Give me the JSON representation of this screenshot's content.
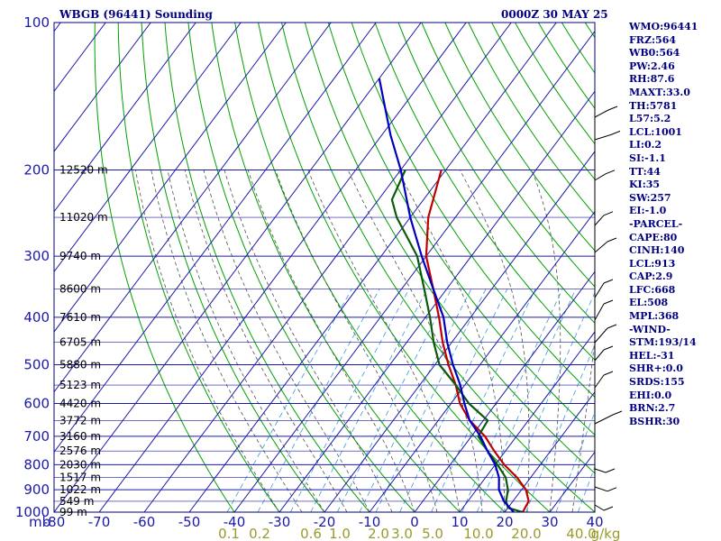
{
  "header": {
    "station": "WBGB (96441) Sounding",
    "datetime": "0000Z 30 MAY 25"
  },
  "chart_data": {
    "type": "line",
    "title": "WBGB (96441) Sounding",
    "yscale": "log",
    "ylim": [
      1000,
      100
    ],
    "xlim": [
      -80,
      40
    ],
    "pressure_ticks": [
      "100",
      "200",
      "300",
      "400",
      "500",
      "600",
      "700",
      "800",
      "900",
      "1000"
    ],
    "temp_ticks": [
      "-80",
      "-70",
      "-60",
      "-50",
      "-40",
      "-30",
      "-20",
      "-10",
      "0",
      "10",
      "20",
      "30",
      "40"
    ],
    "y_unit": "mb",
    "height_labels": [
      {
        "p": 200,
        "label": "12520 m"
      },
      {
        "p": 250,
        "label": "11020 m"
      },
      {
        "p": 300,
        "label": "9740 m"
      },
      {
        "p": 350,
        "label": "8600 m"
      },
      {
        "p": 400,
        "label": "7610 m"
      },
      {
        "p": 450,
        "label": "6705 m"
      },
      {
        "p": 500,
        "label": "5880 m"
      },
      {
        "p": 550,
        "label": "5123 m"
      },
      {
        "p": 600,
        "label": "4420 m"
      },
      {
        "p": 650,
        "label": "3772 m"
      },
      {
        "p": 700,
        "label": "3160 m"
      },
      {
        "p": 750,
        "label": "2576 m"
      },
      {
        "p": 800,
        "label": "2030 m"
      },
      {
        "p": 850,
        "label": "1517 m"
      },
      {
        "p": 900,
        "label": "1022 m"
      },
      {
        "p": 950,
        "label": "549 m"
      },
      {
        "p": 1000,
        "label": "99 m"
      }
    ],
    "mixing_ratio_labels": [
      "0.1",
      "0.2",
      "0.6",
      "1.0",
      "2.0",
      "3.0",
      "5.0",
      "10.0",
      "20.0",
      "40.0"
    ],
    "mixing_ratio_unit": "g/kg",
    "grid": true,
    "series": [
      {
        "color": "#c00000",
        "points": [
          [
            24,
            1000
          ],
          [
            23.5,
            950
          ],
          [
            21,
            900
          ],
          [
            17,
            850
          ],
          [
            12,
            800
          ],
          [
            7.5,
            750
          ],
          [
            3,
            700
          ],
          [
            -3,
            650
          ],
          [
            -8,
            600
          ],
          [
            -12,
            550
          ],
          [
            -17,
            500
          ],
          [
            -22,
            450
          ],
          [
            -27,
            400
          ],
          [
            -33,
            350
          ],
          [
            -40,
            300
          ],
          [
            -46,
            250
          ],
          [
            -51,
            200
          ]
        ]
      },
      {
        "color": "#0a5a0a",
        "points": [
          [
            24,
            1000
          ],
          [
            20,
            980
          ],
          [
            18.5,
            950
          ],
          [
            17,
            900
          ],
          [
            14.5,
            850
          ],
          [
            10.5,
            800
          ],
          [
            6,
            750
          ],
          [
            1.5,
            700
          ],
          [
            1,
            650
          ],
          [
            -6,
            600
          ],
          [
            -12,
            550
          ],
          [
            -19,
            500
          ],
          [
            -24,
            450
          ],
          [
            -29,
            400
          ],
          [
            -35,
            350
          ],
          [
            -42,
            300
          ],
          [
            -53,
            250
          ],
          [
            -57,
            230
          ],
          [
            -59,
            200
          ]
        ]
      },
      {
        "color": "#0000c0",
        "points": [
          [
            22,
            1000
          ],
          [
            18,
            950
          ],
          [
            15,
            900
          ],
          [
            13,
            850
          ],
          [
            10,
            800
          ],
          [
            6,
            750
          ],
          [
            2,
            700
          ],
          [
            -3,
            650
          ],
          [
            -7,
            600
          ],
          [
            -11,
            550
          ],
          [
            -16,
            500
          ],
          [
            -21,
            450
          ],
          [
            -26,
            400
          ],
          [
            -33,
            350
          ],
          [
            -41,
            300
          ],
          [
            -50,
            250
          ],
          [
            -60,
            200
          ],
          [
            -68,
            170
          ],
          [
            -80,
            130
          ]
        ]
      }
    ]
  },
  "indices": [
    "WMO:96441",
    "FRZ:564",
    "WB0:564",
    "PW:2.46",
    "RH:87.6",
    "MAXT:33.0",
    "TH:5781",
    "L57:5.2",
    "LCL:1001",
    "LI:0.2",
    "SI:-1.1",
    "TT:44",
    "KI:35",
    "SW:257",
    "EI:-1.0",
    "-PARCEL-",
    "CAPE:80",
    "CINH:140",
    "LCL:913",
    "CAP:2.9",
    "LFC:668",
    "EL:508",
    "MPL:368",
    "-WIND-",
    "STM:193/14",
    "HEL:-31",
    "SHR+:0.0",
    "SRDS:155",
    "EHI:0.0",
    "BRN:2.7",
    "BSHR:30"
  ],
  "colors": {
    "frame": "#00007a",
    "isotherm": "#1a1aa8",
    "dry_adiabat": "#00a000",
    "moist_adiabat": "#505050",
    "mixing_ratio": "#3a9ad9",
    "temperature": "#c00000",
    "dewpoint": "#0a5a0a",
    "parcel": "#0000c0"
  }
}
